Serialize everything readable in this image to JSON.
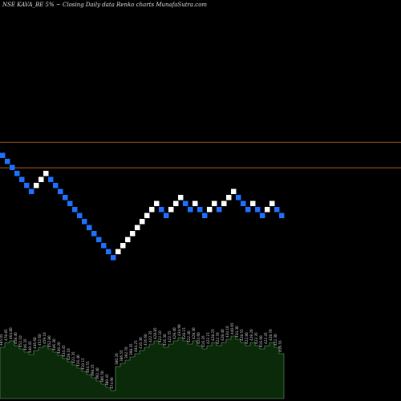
{
  "header": {
    "ticker": "NSE KAVA_BE 5%",
    "note": "Closing Daily data  Renko  charts MunafaSutra.com"
  },
  "colors": {
    "background": "#000000",
    "up_brick": "#ffffff",
    "down_brick": "#1e6fff",
    "reference_line": "#a0521e",
    "volume_fill": "#0a2a0a",
    "volume_stroke": "#6aa06a"
  },
  "chart_data": {
    "type": "renko",
    "title": "NSE KAVA_BE 5%",
    "reference_lines": [
      462.5,
      437.0
    ],
    "bricks": [
      {
        "close": 446,
        "dir": "down"
      },
      {
        "close": 440,
        "dir": "down"
      },
      {
        "close": 434,
        "dir": "down"
      },
      {
        "close": 428,
        "dir": "down"
      },
      {
        "close": 422,
        "dir": "down"
      },
      {
        "close": 416,
        "dir": "down"
      },
      {
        "close": 410,
        "dir": "down"
      },
      {
        "close": 416,
        "dir": "up"
      },
      {
        "close": 422,
        "dir": "up"
      },
      {
        "close": 428,
        "dir": "up"
      },
      {
        "close": 422,
        "dir": "down"
      },
      {
        "close": 416,
        "dir": "down"
      },
      {
        "close": 410,
        "dir": "down"
      },
      {
        "close": 404,
        "dir": "down"
      },
      {
        "close": 398,
        "dir": "down"
      },
      {
        "close": 392,
        "dir": "down"
      },
      {
        "close": 386,
        "dir": "down"
      },
      {
        "close": 380,
        "dir": "down"
      },
      {
        "close": 374,
        "dir": "down"
      },
      {
        "close": 368,
        "dir": "down"
      },
      {
        "close": 362,
        "dir": "down"
      },
      {
        "close": 356,
        "dir": "down"
      },
      {
        "close": 350,
        "dir": "down"
      },
      {
        "close": 344,
        "dir": "down"
      },
      {
        "close": 350,
        "dir": "up"
      },
      {
        "close": 356,
        "dir": "up"
      },
      {
        "close": 362,
        "dir": "up"
      },
      {
        "close": 368,
        "dir": "up"
      },
      {
        "close": 374,
        "dir": "up"
      },
      {
        "close": 380,
        "dir": "up"
      },
      {
        "close": 386,
        "dir": "up"
      },
      {
        "close": 392,
        "dir": "up"
      },
      {
        "close": 398,
        "dir": "up"
      },
      {
        "close": 392,
        "dir": "down"
      },
      {
        "close": 386,
        "dir": "down"
      },
      {
        "close": 392,
        "dir": "up"
      },
      {
        "close": 398,
        "dir": "up"
      },
      {
        "close": 404,
        "dir": "up"
      },
      {
        "close": 398,
        "dir": "down"
      },
      {
        "close": 392,
        "dir": "down"
      },
      {
        "close": 398,
        "dir": "up"
      },
      {
        "close": 392,
        "dir": "down"
      },
      {
        "close": 386,
        "dir": "down"
      },
      {
        "close": 392,
        "dir": "up"
      },
      {
        "close": 398,
        "dir": "up"
      },
      {
        "close": 392,
        "dir": "down"
      },
      {
        "close": 398,
        "dir": "up"
      },
      {
        "close": 404,
        "dir": "up"
      },
      {
        "close": 410,
        "dir": "up"
      },
      {
        "close": 404,
        "dir": "down"
      },
      {
        "close": 398,
        "dir": "down"
      },
      {
        "close": 392,
        "dir": "down"
      },
      {
        "close": 398,
        "dir": "up"
      },
      {
        "close": 392,
        "dir": "down"
      },
      {
        "close": 386,
        "dir": "down"
      },
      {
        "close": 392,
        "dir": "up"
      },
      {
        "close": 398,
        "dir": "up"
      },
      {
        "close": 392,
        "dir": "down"
      },
      {
        "close": 386,
        "dir": "down"
      }
    ],
    "volume": [
      64,
      70,
      72,
      66,
      62,
      58,
      55,
      60,
      64,
      66,
      62,
      58,
      54,
      50,
      46,
      42,
      38,
      34,
      30,
      26,
      22,
      18,
      14,
      10,
      40,
      44,
      48,
      52,
      56,
      60,
      64,
      68,
      72,
      68,
      64,
      68,
      72,
      76,
      72,
      68,
      72,
      66,
      62,
      66,
      70,
      66,
      70,
      74,
      78,
      74,
      70,
      66,
      70,
      66,
      62,
      66,
      70,
      64,
      56
    ],
    "labels": [
      "485.05",
      "478.85",
      "464.80",
      "458.40",
      "452.10",
      "446.35",
      "440.45",
      "446.60",
      "452.60",
      "459.10",
      "452.80",
      "446.30",
      "440.20",
      "434.45",
      "428.10",
      "422.35",
      "416.40",
      "410.15",
      "404.55",
      "398.25",
      "392.40",
      "386.50",
      "380.45",
      "374.90",
      "380.20",
      "386.55",
      "392.70",
      "398.35",
      "404.25",
      "410.30",
      "416.60",
      "422.35",
      "428.85",
      "422.10",
      "416.30",
      "422.55",
      "428.40",
      "434.90",
      "428.15",
      "422.40",
      "428.30",
      "422.60",
      "416.35",
      "422.15",
      "428.25",
      "422.70",
      "428.40",
      "434.10",
      "440.65",
      "434.30",
      "428.55",
      "422.80",
      "428.20",
      "422.35",
      "416.60",
      "422.45",
      "428.70",
      "422.30",
      "416.55"
    ]
  }
}
